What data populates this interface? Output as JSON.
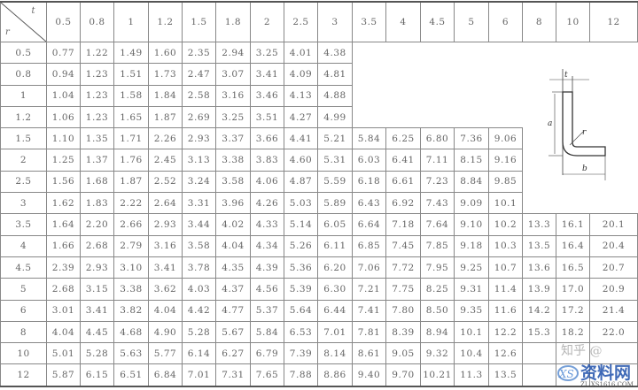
{
  "header": {
    "t_label": "t",
    "r_label": "r",
    "t_values": [
      "0.5",
      "0.8",
      "1",
      "1.2",
      "1.5",
      "1.8",
      "2",
      "2.5",
      "3",
      "3.5",
      "4",
      "4.5",
      "5",
      "6",
      "8",
      "10",
      "12"
    ]
  },
  "rows": [
    {
      "r": "0.5",
      "values": [
        "0.77",
        "1.22",
        "1.49",
        "1.60",
        "2.35",
        "2.94",
        "3.25",
        "4.01",
        "4.38"
      ]
    },
    {
      "r": "0.8",
      "values": [
        "0.94",
        "1.23",
        "1.51",
        "1.73",
        "2.47",
        "3.07",
        "3.41",
        "4.09",
        "4.81"
      ]
    },
    {
      "r": "1",
      "values": [
        "1.04",
        "1.23",
        "1.58",
        "1.84",
        "2.58",
        "3.16",
        "3.46",
        "4.13",
        "4.88"
      ]
    },
    {
      "r": "1.2",
      "values": [
        "1.06",
        "1.23",
        "1.65",
        "1.87",
        "2.69",
        "3.25",
        "3.51",
        "4.27",
        "4.99"
      ]
    },
    {
      "r": "1.5",
      "values": [
        "1.10",
        "1.35",
        "1.71",
        "2.26",
        "2.93",
        "3.37",
        "3.66",
        "4.41",
        "5.21",
        "5.84",
        "6.25",
        "6.80",
        "7.36",
        "9.06"
      ]
    },
    {
      "r": "2",
      "values": [
        "1.25",
        "1.37",
        "1.76",
        "2.45",
        "3.13",
        "3.38",
        "3.83",
        "4.60",
        "5.31",
        "6.03",
        "6.41",
        "7.11",
        "8.15",
        "9.16"
      ]
    },
    {
      "r": "2.5",
      "values": [
        "1.56",
        "1.68",
        "1.87",
        "2.52",
        "3.24",
        "3.58",
        "4.06",
        "4.87",
        "5.59",
        "6.18",
        "6.61",
        "7.23",
        "8.84",
        "9.85"
      ]
    },
    {
      "r": "3",
      "values": [
        "1.62",
        "1.83",
        "2.22",
        "2.64",
        "3.31",
        "3.96",
        "4.26",
        "5.03",
        "5.89",
        "6.43",
        "6.92",
        "7.43",
        "9.09",
        "10.1"
      ]
    },
    {
      "r": "3.5",
      "values": [
        "1.64",
        "2.20",
        "2.66",
        "2.93",
        "3.44",
        "4.02",
        "4.33",
        "5.14",
        "6.05",
        "6.64",
        "7.18",
        "7.64",
        "9.10",
        "10.2",
        "13.3",
        "16.1",
        "20.1"
      ]
    },
    {
      "r": "4",
      "values": [
        "1.66",
        "2.68",
        "2.79",
        "3.16",
        "3.58",
        "4.04",
        "4.34",
        "5.26",
        "6.11",
        "6.85",
        "7.45",
        "7.85",
        "9.18",
        "10.3",
        "13.5",
        "16.4",
        "20.4"
      ]
    },
    {
      "r": "4.5",
      "values": [
        "2.39",
        "2.93",
        "3.10",
        "3.41",
        "3.78",
        "4.35",
        "4.39",
        "5.36",
        "6.20",
        "7.06",
        "7.72",
        "7.95",
        "9.25",
        "10.7",
        "13.6",
        "16.5",
        "20.7"
      ]
    },
    {
      "r": "5",
      "values": [
        "2.68",
        "3.15",
        "3.38",
        "3.62",
        "4.03",
        "4.37",
        "4.56",
        "5.39",
        "6.30",
        "7.21",
        "7.75",
        "8.25",
        "9.31",
        "11.4",
        "13.9",
        "17.0",
        "20.9"
      ]
    },
    {
      "r": "6",
      "values": [
        "3.01",
        "3.41",
        "3.82",
        "4.04",
        "4.42",
        "4.77",
        "5.37",
        "5.64",
        "6.44",
        "7.41",
        "7.80",
        "8.50",
        "9.35",
        "11.6",
        "14.2",
        "17.2",
        "21.4"
      ]
    },
    {
      "r": "8",
      "values": [
        "4.04",
        "4.45",
        "4.68",
        "4.90",
        "5.28",
        "5.67",
        "5.84",
        "6.53",
        "7.01",
        "7.81",
        "8.39",
        "8.94",
        "10.1",
        "12.2",
        "15.3",
        "18.2",
        "22.0"
      ]
    },
    {
      "r": "10",
      "values": [
        "5.01",
        "5.28",
        "5.63",
        "5.77",
        "6.14",
        "6.27",
        "6.79",
        "7.39",
        "8.14",
        "8.61",
        "9.05",
        "9.32",
        "10.4",
        "12.6",
        "",
        "",
        ""
      ]
    },
    {
      "r": "12",
      "values": [
        "5.87",
        "6.15",
        "6.51",
        "6.84",
        "7.01",
        "7.31",
        "7.65",
        "7.88",
        "8.86",
        "9.40",
        "9.70",
        "10.21",
        "11.3",
        "13.5",
        "",
        "",
        ""
      ]
    }
  ],
  "diagram": {
    "label_t": "t",
    "label_a": "a",
    "label_r": "r",
    "label_b": "b"
  },
  "watermark": {
    "text": "资料网",
    "url_text": "ZL.XS1616.COM",
    "logo_text": "XS",
    "zhihu_text": "知乎 @"
  }
}
